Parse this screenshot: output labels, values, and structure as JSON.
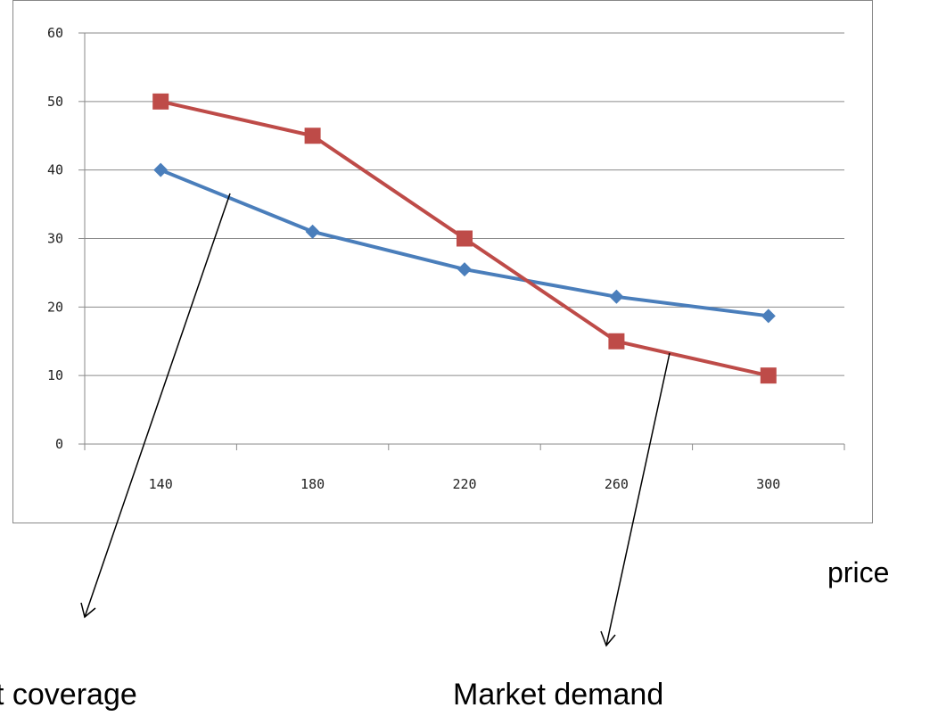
{
  "chart_data": {
    "type": "line",
    "categories": [
      "140",
      "180",
      "220",
      "260",
      "300"
    ],
    "x": [
      140,
      180,
      220,
      260,
      300
    ],
    "series": [
      {
        "values": [
          40,
          31,
          25.5,
          21.5,
          18.7
        ],
        "color": "#4a7ebb",
        "marker": "diamond"
      },
      {
        "values": [
          50,
          45,
          30,
          15,
          10
        ],
        "color": "#be4b48",
        "marker": "square"
      }
    ],
    "ylim": [
      0,
      60
    ],
    "yticks": [
      0,
      10,
      20,
      30,
      40,
      50,
      60
    ],
    "xlabel": "price",
    "grid": true,
    "legend": "none",
    "annotations": [
      {
        "text": "st coverage",
        "points_to": "series 1"
      },
      {
        "text": "Market demand",
        "points_to": "series 2"
      }
    ]
  }
}
